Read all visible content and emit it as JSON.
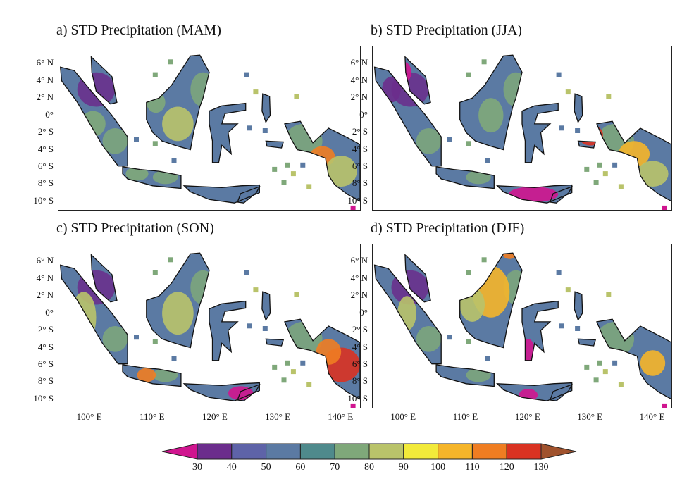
{
  "panels": [
    {
      "id": "a",
      "title": "a) STD Precipitation (MAM)"
    },
    {
      "id": "b",
      "title": "b) STD Precipitation (JJA)"
    },
    {
      "id": "c",
      "title": "c) STD Precipitation (SON)"
    },
    {
      "id": "d",
      "title": "d) STD Precipitation (DJF)"
    }
  ],
  "lat_ticks": [
    "6° N",
    "4° N",
    "2° N",
    "0°",
    "2° S",
    "4° S",
    "6° S",
    "8° S",
    "10° S"
  ],
  "lat_values": [
    6,
    4,
    2,
    0,
    -2,
    -4,
    -6,
    -8,
    -10
  ],
  "lon_ticks": [
    "100° E",
    "110° E",
    "120° E",
    "130° E",
    "140° E"
  ],
  "lon_values": [
    100,
    110,
    120,
    130,
    140
  ],
  "colorbar": {
    "labels": [
      "30",
      "40",
      "50",
      "60",
      "70",
      "80",
      "90",
      "100",
      "110",
      "120",
      "130"
    ],
    "colors": [
      "#6b2d8c",
      "#5e63a8",
      "#5b7aa3",
      "#4f8a8c",
      "#7fa87a",
      "#b9c36a",
      "#f2ea3a",
      "#f5b52a",
      "#ef7d22",
      "#d93222"
    ],
    "under_color": "#d0158f",
    "over_color": "#a0522d"
  },
  "map_colors": {
    "base": "#5b7aa3",
    "mid": "#7fa87a",
    "high": "#b9c36a",
    "hot": "#f5b52a",
    "hotter": "#ef7d22",
    "red": "#d93222",
    "low": "#6b2d8c",
    "under": "#d0158f",
    "coast": "#111111"
  }
}
